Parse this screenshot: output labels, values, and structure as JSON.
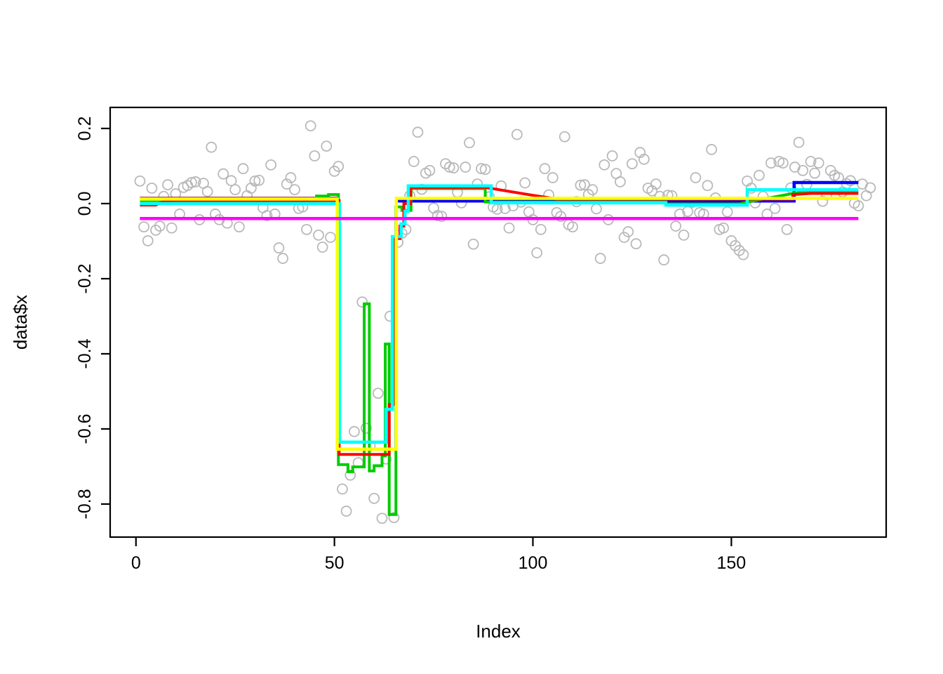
{
  "figure": {
    "background": "#ffffff",
    "box_color": "#000000"
  },
  "chart_data": {
    "type": "scatter",
    "title": "",
    "xlabel": "Index",
    "ylabel": "data$x",
    "grid": false,
    "legend": "none",
    "xlim": [
      -6.5,
      189
    ],
    "ylim": [
      -0.888,
      0.256
    ],
    "x_ticks": [
      {
        "v": 0,
        "label": "0"
      },
      {
        "v": 50,
        "label": "50"
      },
      {
        "v": 100,
        "label": "100"
      },
      {
        "v": 150,
        "label": "150"
      }
    ],
    "y_ticks": [
      {
        "v": 0.2,
        "label": "0.2"
      },
      {
        "v": 0.0,
        "label": "0.0"
      },
      {
        "v": -0.2,
        "label": "-0.2"
      },
      {
        "v": -0.4,
        "label": "-0.4"
      },
      {
        "v": -0.6,
        "label": "-0.6"
      },
      {
        "v": -0.8,
        "label": "-0.8"
      }
    ],
    "point_style": {
      "shape": "open-circle",
      "color": "#b9b9b9",
      "radius": 7,
      "stroke_width": 1.8
    },
    "points_x_start": 1,
    "points_y": [
      0.06,
      -0.062,
      -0.099,
      0.041,
      -0.071,
      -0.06,
      0.019,
      0.05,
      -0.065,
      0.026,
      -0.028,
      0.043,
      0.048,
      0.056,
      0.058,
      -0.043,
      0.054,
      0.032,
      0.15,
      -0.028,
      -0.043,
      0.079,
      -0.052,
      0.061,
      0.037,
      -0.062,
      0.093,
      0.021,
      0.041,
      0.06,
      0.062,
      -0.011,
      -0.032,
      0.103,
      -0.028,
      -0.118,
      -0.146,
      0.052,
      0.069,
      0.037,
      -0.013,
      -0.009,
      -0.069,
      0.207,
      0.127,
      -0.084,
      -0.116,
      0.153,
      -0.09,
      0.086,
      0.099,
      -0.76,
      -0.819,
      -0.723,
      -0.607,
      -0.69,
      -0.262,
      -0.598,
      -0.645,
      -0.785,
      -0.505,
      -0.838,
      -0.68,
      -0.3,
      -0.836,
      -0.103,
      -0.079,
      -0.069,
      0.021,
      0.112,
      0.19,
      0.038,
      0.081,
      0.088,
      -0.012,
      -0.032,
      -0.034,
      0.106,
      0.097,
      0.095,
      0.03,
      0.002,
      0.097,
      0.162,
      -0.108,
      0.052,
      0.093,
      0.091,
      0.018,
      -0.009,
      -0.015,
      0.047,
      -0.013,
      -0.065,
      -0.006,
      0.184,
      0.004,
      0.055,
      -0.022,
      -0.043,
      -0.131,
      -0.069,
      0.093,
      0.023,
      0.069,
      -0.024,
      -0.034,
      0.178,
      -0.056,
      -0.062,
      0.005,
      0.049,
      0.05,
      0.024,
      0.037,
      -0.014,
      -0.146,
      0.103,
      -0.043,
      0.127,
      0.08,
      0.058,
      -0.09,
      -0.075,
      0.106,
      -0.107,
      0.136,
      0.118,
      0.041,
      0.034,
      0.052,
      0.019,
      -0.15,
      0.022,
      0.021,
      -0.06,
      -0.028,
      -0.084,
      -0.021,
      0.003,
      0.069,
      -0.024,
      -0.028,
      0.048,
      0.144,
      0.015,
      -0.069,
      -0.065,
      -0.022,
      -0.099,
      -0.112,
      -0.125,
      -0.136,
      0.06,
      0.041,
      0.002,
      0.075,
      0.019,
      -0.028,
      0.108,
      -0.013,
      0.112,
      0.108,
      -0.069,
      0.042,
      0.097,
      0.163,
      0.088,
      0.051,
      0.112,
      0.081,
      0.108,
      0.006,
      0.023,
      0.088,
      0.075,
      0.069,
      0.031,
      0.053,
      0.061,
      0.001,
      -0.006,
      0.052,
      0.021,
      0.042
    ],
    "series": [
      {
        "name": "darkred-line",
        "color": "#8B0000",
        "width": 2,
        "points": [
          [
            1,
            0.016
          ],
          [
            51,
            0.016
          ]
        ]
      },
      {
        "name": "blue-line",
        "color": "#0000FF",
        "width": 4.5,
        "points": [
          [
            65.6,
            0.007
          ],
          [
            165.8,
            0.007
          ],
          [
            165.8,
            0.056
          ],
          [
            182,
            0.056
          ]
        ]
      },
      {
        "name": "green-line",
        "color": "#00CC00",
        "width": 4,
        "points": [
          [
            1,
            0.008
          ],
          [
            45.5,
            0.008
          ],
          [
            45.5,
            0.02
          ],
          [
            48.5,
            0.02
          ],
          [
            48.5,
            0.024
          ],
          [
            51,
            0.024
          ],
          [
            51,
            -0.695
          ],
          [
            53.4,
            -0.695
          ],
          [
            53.4,
            -0.714
          ],
          [
            54.6,
            -0.714
          ],
          [
            54.6,
            -0.701
          ],
          [
            57.5,
            -0.701
          ],
          [
            57.5,
            -0.267
          ],
          [
            58.8,
            -0.267
          ],
          [
            58.8,
            -0.712
          ],
          [
            60,
            -0.712
          ],
          [
            60,
            -0.698
          ],
          [
            62,
            -0.698
          ],
          [
            62,
            -0.672
          ],
          [
            62.8,
            -0.672
          ],
          [
            62.8,
            -0.374
          ],
          [
            63.8,
            -0.374
          ],
          [
            63.8,
            -0.828
          ],
          [
            65.5,
            -0.828
          ],
          [
            65.5,
            -0.009
          ],
          [
            67,
            -0.009
          ],
          [
            67,
            -0.018
          ],
          [
            69.3,
            -0.018
          ],
          [
            69.3,
            0.04
          ],
          [
            88,
            0.04
          ],
          [
            88,
            0.004
          ],
          [
            133.5,
            0.004
          ],
          [
            133.5,
            -0.001
          ],
          [
            152,
            -0.001
          ],
          [
            156,
            0.008
          ],
          [
            164,
            0.024
          ],
          [
            167,
            0.029
          ],
          [
            182,
            0.031
          ]
        ]
      },
      {
        "name": "red-line",
        "color": "#FF0000",
        "width": 4,
        "points": [
          [
            1,
            -0.004
          ],
          [
            5,
            -0.004
          ],
          [
            7,
            0.006
          ],
          [
            10,
            0.008
          ],
          [
            51.2,
            0.008
          ],
          [
            51.2,
            -0.668
          ],
          [
            63.8,
            -0.668
          ],
          [
            63.8,
            -0.535
          ],
          [
            64.8,
            -0.535
          ],
          [
            64.8,
            -0.093
          ],
          [
            66.5,
            -0.093
          ],
          [
            66.5,
            -0.06
          ],
          [
            67.5,
            -0.06
          ],
          [
            67.5,
            0.0
          ],
          [
            69.2,
            0.0
          ],
          [
            69.2,
            0.043
          ],
          [
            88,
            0.043
          ],
          [
            92,
            0.036
          ],
          [
            100,
            0.022
          ],
          [
            105,
            0.014
          ],
          [
            106,
            0.012
          ],
          [
            165.5,
            0.012
          ],
          [
            165.5,
            0.024
          ],
          [
            170,
            0.027
          ],
          [
            182,
            0.027
          ]
        ]
      },
      {
        "name": "cyan-line",
        "color": "#00FFFF",
        "width": 4.5,
        "points": [
          [
            1,
            0.0
          ],
          [
            51.3,
            0.0
          ],
          [
            51.3,
            -0.635
          ],
          [
            63,
            -0.635
          ],
          [
            63,
            -0.548
          ],
          [
            64.6,
            -0.548
          ],
          [
            64.6,
            -0.088
          ],
          [
            66.8,
            -0.088
          ],
          [
            66.8,
            -0.054
          ],
          [
            67.8,
            -0.054
          ],
          [
            67.8,
            -0.02
          ],
          [
            68.6,
            -0.02
          ],
          [
            68.6,
            0.047
          ],
          [
            89.5,
            0.047
          ],
          [
            89.5,
            0.002
          ],
          [
            133.5,
            0.002
          ],
          [
            133.5,
            -0.004
          ],
          [
            154,
            -0.004
          ],
          [
            154,
            0.037
          ],
          [
            182,
            0.037
          ]
        ]
      },
      {
        "name": "yellow-line",
        "color": "#FFFF00",
        "width": 4.5,
        "points": [
          [
            1,
            0.012
          ],
          [
            50.7,
            0.012
          ],
          [
            50.7,
            -0.654
          ],
          [
            65.6,
            -0.654
          ],
          [
            65.6,
            0.014
          ],
          [
            182,
            0.014
          ]
        ]
      },
      {
        "name": "magenta-line",
        "color": "#FF00FF",
        "width": 4.5,
        "points": [
          [
            1,
            -0.04
          ],
          [
            182,
            -0.04
          ]
        ]
      }
    ]
  }
}
